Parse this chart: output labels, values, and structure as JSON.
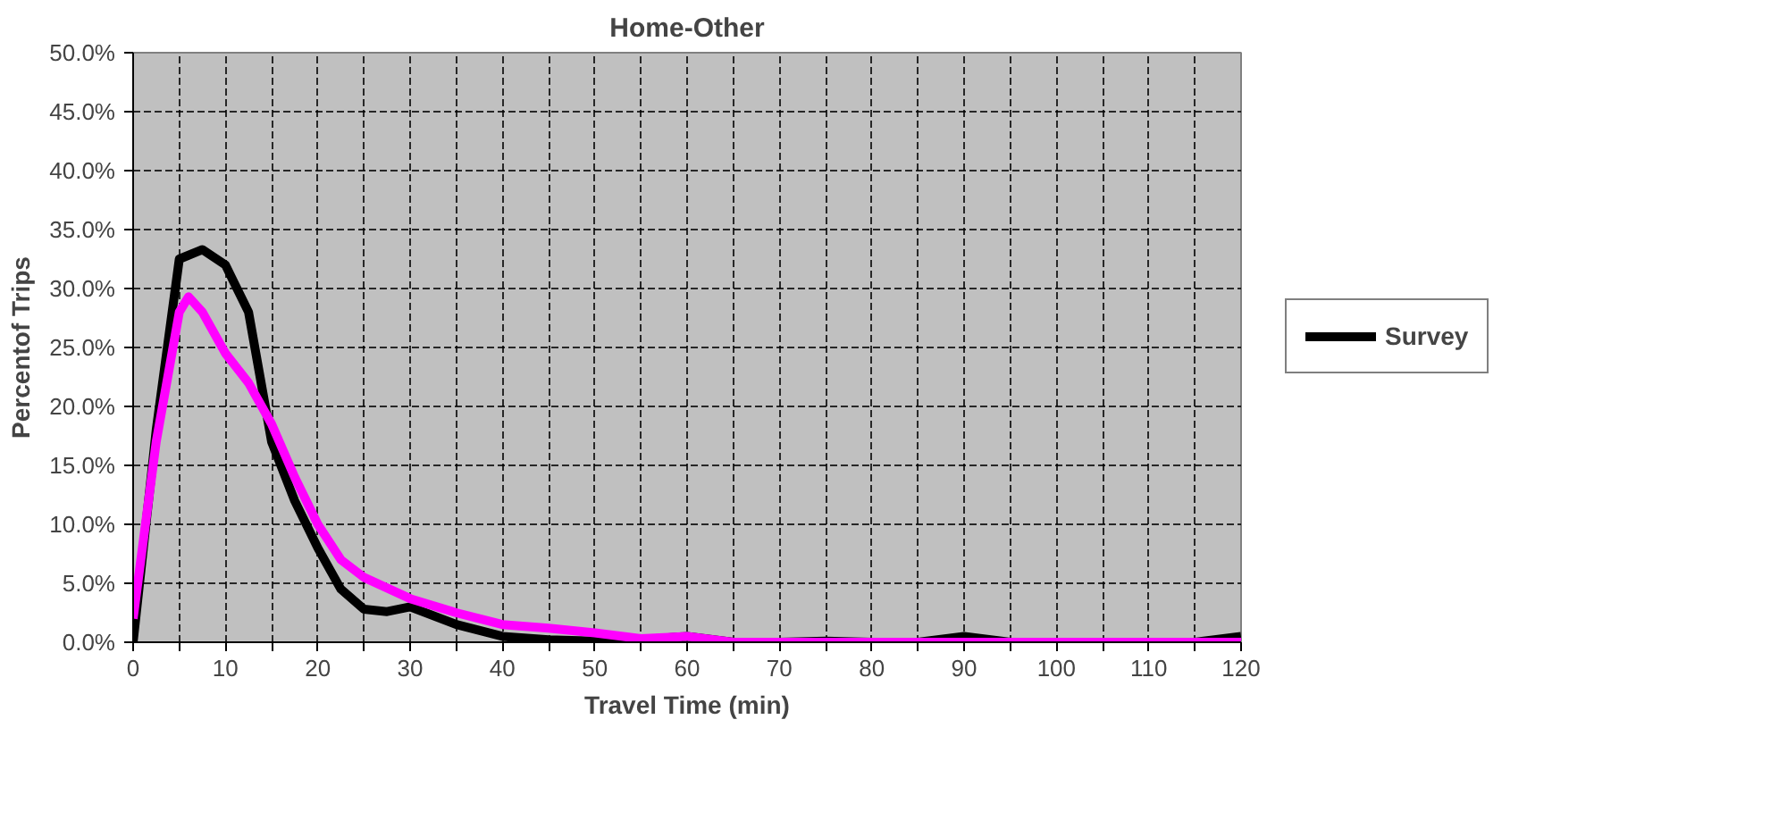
{
  "chart_data": {
    "type": "line",
    "title": "Home-Other",
    "xlabel": "Travel Time (min)",
    "ylabel": "Percentof Trips",
    "xlim": [
      0,
      120
    ],
    "ylim": [
      0,
      50
    ],
    "xticks": [
      0,
      {
        "value": 5,
        "label": null
      },
      10,
      {
        "value": 15,
        "label": null
      },
      20,
      {
        "value": 25,
        "label": null
      },
      30,
      {
        "value": 35,
        "label": null
      },
      40,
      {
        "value": 45,
        "label": null
      },
      50,
      {
        "value": 55,
        "label": null
      },
      60,
      {
        "value": 65,
        "label": null
      },
      70,
      {
        "value": 75,
        "label": null
      },
      80,
      {
        "value": 85,
        "label": null
      },
      90,
      {
        "value": 95,
        "label": null
      },
      100,
      {
        "value": 105,
        "label": null
      },
      110,
      {
        "value": 115,
        "label": null
      },
      120
    ],
    "yticks": [
      {
        "value": 0,
        "label": "0.0%"
      },
      {
        "value": 5,
        "label": "5.0%"
      },
      {
        "value": 10,
        "label": "10.0%"
      },
      {
        "value": 15,
        "label": "15.0%"
      },
      {
        "value": 20,
        "label": "20.0%"
      },
      {
        "value": 25,
        "label": "25.0%"
      },
      {
        "value": 30,
        "label": "30.0%"
      },
      {
        "value": 35,
        "label": "35.0%"
      },
      {
        "value": 40,
        "label": "40.0%"
      },
      {
        "value": 45,
        "label": "45.0%"
      },
      {
        "value": 50,
        "label": "50.0%"
      }
    ],
    "grid": true,
    "legend": "right",
    "marker": "none",
    "line_style": "solid",
    "series": [
      {
        "name": "Survey",
        "color": "#000000",
        "x": [
          0,
          2.5,
          5,
          7.5,
          10,
          12.5,
          15,
          17.5,
          20,
          22.5,
          25,
          27.5,
          30,
          35,
          40,
          45,
          50,
          55,
          60,
          65,
          70,
          75,
          80,
          85,
          90,
          95,
          100,
          110,
          115,
          120
        ],
        "values": [
          0,
          18,
          32.5,
          33.3,
          32,
          28,
          17,
          12,
          8,
          4.5,
          2.8,
          2.6,
          3,
          1.5,
          0.5,
          0.2,
          0.1,
          0.2,
          0.5,
          0,
          0,
          0.1,
          0,
          0,
          0.5,
          0,
          0,
          0,
          0,
          0.5
        ]
      },
      {
        "color": "#ff00ff",
        "x": [
          0,
          2.5,
          5,
          6,
          7.5,
          10,
          12.5,
          15,
          17.5,
          20,
          22.5,
          25,
          30,
          35,
          40,
          45,
          50,
          55,
          60,
          65,
          70,
          80,
          90,
          100,
          110,
          120
        ],
        "values": [
          2,
          17,
          28,
          29.3,
          28,
          24.5,
          22,
          18.5,
          14,
          10,
          7,
          5.5,
          3.7,
          2.5,
          1.5,
          1.2,
          0.8,
          0.3,
          0.5,
          0,
          0,
          0,
          0,
          0,
          0,
          0
        ]
      }
    ]
  }
}
